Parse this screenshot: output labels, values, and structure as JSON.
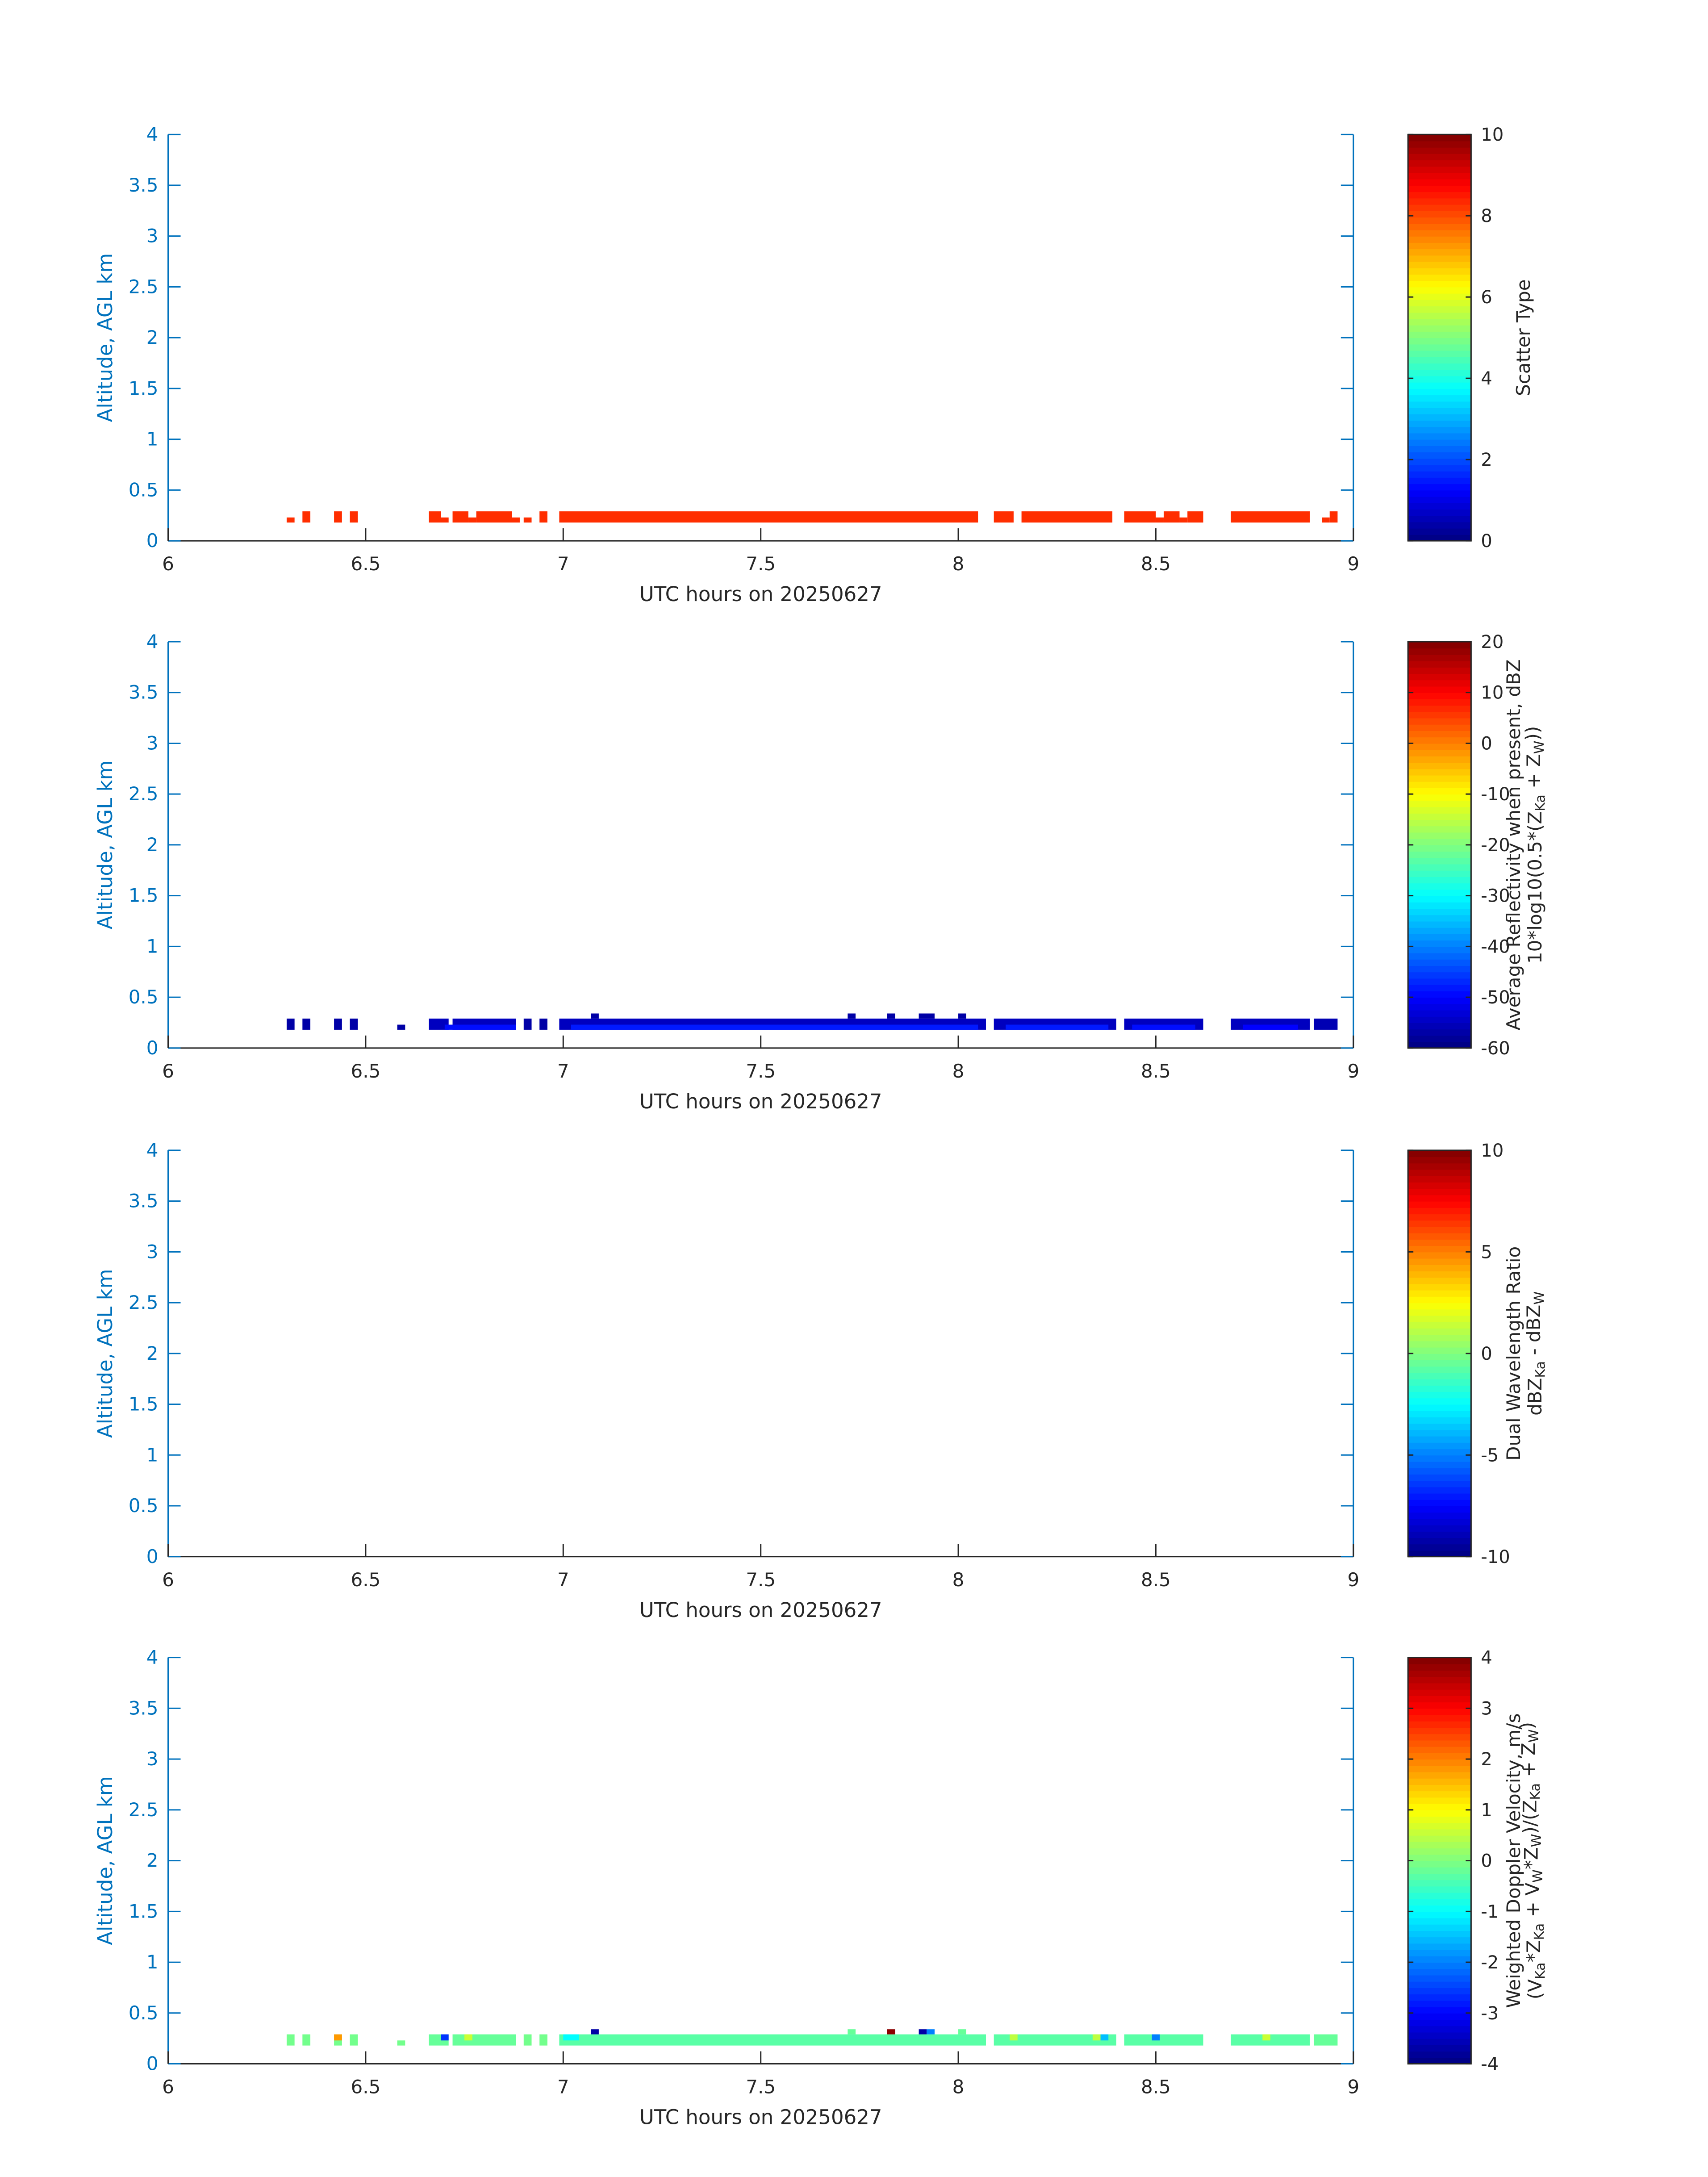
{
  "chart_data": [
    {
      "type": "heatmap",
      "xlabel": "UTC hours on 20250627",
      "ylabel": "Altitude, AGL km",
      "xlim": [
        6,
        9
      ],
      "ylim": [
        0,
        4
      ],
      "xticks": [
        "6",
        "6.5",
        "7",
        "7.5",
        "8",
        "8.5",
        "9"
      ],
      "yticks": [
        "0",
        "0.5",
        "1",
        "1.5",
        "2",
        "2.5",
        "3",
        "3.5",
        "4"
      ],
      "colorbar": {
        "label_lines": [
          "Scatter Type"
        ],
        "clim": [
          0,
          10
        ],
        "ticks": [
          "0",
          "2",
          "4",
          "6",
          "8",
          "10"
        ]
      },
      "data": [
        {
          "x0": 6.3,
          "x1": 6.32,
          "y0": 0.18,
          "y1": 0.23,
          "v": 8.3
        },
        {
          "x0": 6.34,
          "x1": 6.36,
          "y0": 0.18,
          "y1": 0.29,
          "v": 8.3
        },
        {
          "x0": 6.42,
          "x1": 6.44,
          "y0": 0.18,
          "y1": 0.29,
          "v": 8.3
        },
        {
          "x0": 6.46,
          "x1": 6.48,
          "y0": 0.18,
          "y1": 0.29,
          "v": 8.3
        },
        {
          "x0": 6.66,
          "x1": 6.69,
          "y0": 0.18,
          "y1": 0.29,
          "v": 8.3
        },
        {
          "x0": 6.69,
          "x1": 6.71,
          "y0": 0.18,
          "y1": 0.23,
          "v": 8.3
        },
        {
          "x0": 6.72,
          "x1": 6.76,
          "y0": 0.18,
          "y1": 0.29,
          "v": 8.3
        },
        {
          "x0": 6.76,
          "x1": 6.78,
          "y0": 0.18,
          "y1": 0.23,
          "v": 8.3
        },
        {
          "x0": 6.78,
          "x1": 6.87,
          "y0": 0.18,
          "y1": 0.29,
          "v": 8.3
        },
        {
          "x0": 6.87,
          "x1": 6.89,
          "y0": 0.18,
          "y1": 0.23,
          "v": 8.3
        },
        {
          "x0": 6.9,
          "x1": 6.92,
          "y0": 0.18,
          "y1": 0.23,
          "v": 8.3
        },
        {
          "x0": 6.94,
          "x1": 6.96,
          "y0": 0.18,
          "y1": 0.29,
          "v": 8.3
        },
        {
          "x0": 6.99,
          "x1": 8.05,
          "y0": 0.18,
          "y1": 0.29,
          "v": 8.3
        },
        {
          "x0": 8.09,
          "x1": 8.14,
          "y0": 0.18,
          "y1": 0.29,
          "v": 8.3
        },
        {
          "x0": 8.16,
          "x1": 8.39,
          "y0": 0.18,
          "y1": 0.29,
          "v": 8.3
        },
        {
          "x0": 8.42,
          "x1": 8.5,
          "y0": 0.18,
          "y1": 0.29,
          "v": 8.3
        },
        {
          "x0": 8.5,
          "x1": 8.52,
          "y0": 0.18,
          "y1": 0.23,
          "v": 8.3
        },
        {
          "x0": 8.52,
          "x1": 8.56,
          "y0": 0.18,
          "y1": 0.29,
          "v": 8.3
        },
        {
          "x0": 8.56,
          "x1": 8.58,
          "y0": 0.18,
          "y1": 0.23,
          "v": 8.3
        },
        {
          "x0": 8.58,
          "x1": 8.62,
          "y0": 0.18,
          "y1": 0.29,
          "v": 8.3
        },
        {
          "x0": 8.69,
          "x1": 8.89,
          "y0": 0.18,
          "y1": 0.29,
          "v": 8.3
        },
        {
          "x0": 8.92,
          "x1": 8.94,
          "y0": 0.18,
          "y1": 0.23,
          "v": 8.3
        },
        {
          "x0": 8.94,
          "x1": 8.96,
          "y0": 0.18,
          "y1": 0.29,
          "v": 8.3
        }
      ]
    },
    {
      "type": "heatmap",
      "xlabel": "UTC hours on 20250627",
      "ylabel": "Altitude, AGL km",
      "xlim": [
        6,
        9
      ],
      "ylim": [
        0,
        4
      ],
      "xticks": [
        "6",
        "6.5",
        "7",
        "7.5",
        "8",
        "8.5",
        "9"
      ],
      "yticks": [
        "0",
        "0.5",
        "1",
        "1.5",
        "2",
        "2.5",
        "3",
        "3.5",
        "4"
      ],
      "colorbar": {
        "label_lines": [
          "Average Reflectivity when present, dBZ",
          "10*log10(0.5*(Z|Ka| + Z|W|))"
        ],
        "clim": [
          -60,
          20
        ],
        "ticks": [
          "-60",
          "-50",
          "-40",
          "-30",
          "-20",
          "-10",
          "0",
          "10",
          "20"
        ]
      },
      "data": [
        {
          "x0": 6.3,
          "x1": 6.32,
          "y0": 0.18,
          "y1": 0.29,
          "v": -57
        },
        {
          "x0": 6.34,
          "x1": 6.36,
          "y0": 0.18,
          "y1": 0.29,
          "v": -57
        },
        {
          "x0": 6.42,
          "x1": 6.44,
          "y0": 0.18,
          "y1": 0.29,
          "v": -57
        },
        {
          "x0": 6.46,
          "x1": 6.48,
          "y0": 0.18,
          "y1": 0.29,
          "v": -57
        },
        {
          "x0": 6.58,
          "x1": 6.6,
          "y0": 0.18,
          "y1": 0.23,
          "v": -57
        },
        {
          "x0": 6.66,
          "x1": 6.71,
          "y0": 0.18,
          "y1": 0.29,
          "v": -55
        },
        {
          "x0": 6.72,
          "x1": 6.88,
          "y0": 0.18,
          "y1": 0.29,
          "v": -55
        },
        {
          "x0": 6.9,
          "x1": 6.92,
          "y0": 0.18,
          "y1": 0.29,
          "v": -57
        },
        {
          "x0": 6.94,
          "x1": 6.96,
          "y0": 0.18,
          "y1": 0.29,
          "v": -57
        },
        {
          "x0": 6.99,
          "x1": 8.07,
          "y0": 0.18,
          "y1": 0.29,
          "v": -55
        },
        {
          "x0": 8.09,
          "x1": 8.4,
          "y0": 0.18,
          "y1": 0.29,
          "v": -55
        },
        {
          "x0": 8.42,
          "x1": 8.62,
          "y0": 0.18,
          "y1": 0.29,
          "v": -55
        },
        {
          "x0": 8.69,
          "x1": 8.89,
          "y0": 0.18,
          "y1": 0.29,
          "v": -55
        },
        {
          "x0": 8.9,
          "x1": 8.96,
          "y0": 0.18,
          "y1": 0.29,
          "v": -56
        },
        {
          "x0": 6.7,
          "x1": 6.88,
          "y0": 0.18,
          "y1": 0.23,
          "v": -49
        },
        {
          "x0": 7.02,
          "x1": 8.05,
          "y0": 0.18,
          "y1": 0.23,
          "v": -48
        },
        {
          "x0": 8.12,
          "x1": 8.38,
          "y0": 0.18,
          "y1": 0.23,
          "v": -48
        },
        {
          "x0": 8.44,
          "x1": 8.6,
          "y0": 0.18,
          "y1": 0.23,
          "v": -49
        },
        {
          "x0": 8.72,
          "x1": 8.86,
          "y0": 0.18,
          "y1": 0.23,
          "v": -50
        },
        {
          "x0": 7.07,
          "x1": 7.09,
          "y0": 0.29,
          "y1": 0.34,
          "v": -57
        },
        {
          "x0": 7.72,
          "x1": 7.74,
          "y0": 0.29,
          "y1": 0.34,
          "v": -57
        },
        {
          "x0": 7.82,
          "x1": 7.84,
          "y0": 0.29,
          "y1": 0.34,
          "v": -57
        },
        {
          "x0": 7.9,
          "x1": 7.94,
          "y0": 0.29,
          "y1": 0.34,
          "v": -57
        },
        {
          "x0": 8.0,
          "x1": 8.02,
          "y0": 0.29,
          "y1": 0.34,
          "v": -57
        }
      ]
    },
    {
      "type": "heatmap",
      "xlabel": "UTC hours on 20250627",
      "ylabel": "Altitude, AGL km",
      "xlim": [
        6,
        9
      ],
      "ylim": [
        0,
        4
      ],
      "xticks": [
        "6",
        "6.5",
        "7",
        "7.5",
        "8",
        "8.5",
        "9"
      ],
      "yticks": [
        "0",
        "0.5",
        "1",
        "1.5",
        "2",
        "2.5",
        "3",
        "3.5",
        "4"
      ],
      "colorbar": {
        "label_lines": [
          "Dual Wavelength Ratio",
          "dBZ|Ka| - dBZ|W|"
        ],
        "clim": [
          -10,
          10
        ],
        "ticks": [
          "-10",
          "-5",
          "0",
          "5",
          "10"
        ]
      },
      "data": []
    },
    {
      "type": "heatmap",
      "xlabel": "UTC hours on 20250627",
      "ylabel": "Altitude, AGL km",
      "xlim": [
        6,
        9
      ],
      "ylim": [
        0,
        4
      ],
      "xticks": [
        "6",
        "6.5",
        "7",
        "7.5",
        "8",
        "8.5",
        "9"
      ],
      "yticks": [
        "0",
        "0.5",
        "1",
        "1.5",
        "2",
        "2.5",
        "3",
        "3.5",
        "4"
      ],
      "colorbar": {
        "label_lines": [
          "Weighted Doppler Velocity, m/s",
          "(V|Ka|*Z|Ka| + V|W|*Z|W|)/(Z|Ka| + Z|W|)"
        ],
        "clim": [
          -4,
          4
        ],
        "ticks": [
          "-4",
          "-3",
          "-2",
          "-1",
          "0",
          "1",
          "2",
          "3",
          "4"
        ]
      },
      "data": [
        {
          "x0": 6.3,
          "x1": 6.32,
          "y0": 0.18,
          "y1": 0.29,
          "v": -0.1
        },
        {
          "x0": 6.34,
          "x1": 6.36,
          "y0": 0.18,
          "y1": 0.29,
          "v": -0.1
        },
        {
          "x0": 6.42,
          "x1": 6.44,
          "y0": 0.18,
          "y1": 0.29,
          "v": -0.1
        },
        {
          "x0": 6.42,
          "x1": 6.44,
          "y0": 0.23,
          "y1": 0.29,
          "v": 1.8
        },
        {
          "x0": 6.46,
          "x1": 6.48,
          "y0": 0.18,
          "y1": 0.29,
          "v": -0.1
        },
        {
          "x0": 6.58,
          "x1": 6.6,
          "y0": 0.18,
          "y1": 0.23,
          "v": -0.1
        },
        {
          "x0": 6.66,
          "x1": 6.71,
          "y0": 0.18,
          "y1": 0.29,
          "v": -0.2
        },
        {
          "x0": 6.69,
          "x1": 6.71,
          "y0": 0.23,
          "y1": 0.29,
          "v": -2.6
        },
        {
          "x0": 6.72,
          "x1": 6.88,
          "y0": 0.18,
          "y1": 0.29,
          "v": -0.2
        },
        {
          "x0": 6.75,
          "x1": 6.77,
          "y0": 0.23,
          "y1": 0.29,
          "v": 0.6
        },
        {
          "x0": 6.9,
          "x1": 6.92,
          "y0": 0.18,
          "y1": 0.29,
          "v": -0.1
        },
        {
          "x0": 6.94,
          "x1": 6.96,
          "y0": 0.18,
          "y1": 0.29,
          "v": -0.1
        },
        {
          "x0": 6.99,
          "x1": 8.07,
          "y0": 0.18,
          "y1": 0.29,
          "v": -0.3
        },
        {
          "x0": 7.0,
          "x1": 7.04,
          "y0": 0.23,
          "y1": 0.29,
          "v": -1.0
        },
        {
          "x0": 8.09,
          "x1": 8.4,
          "y0": 0.18,
          "y1": 0.29,
          "v": -0.3
        },
        {
          "x0": 8.13,
          "x1": 8.15,
          "y0": 0.23,
          "y1": 0.29,
          "v": 0.5
        },
        {
          "x0": 8.34,
          "x1": 8.36,
          "y0": 0.23,
          "y1": 0.29,
          "v": 0.5
        },
        {
          "x0": 8.36,
          "x1": 8.38,
          "y0": 0.23,
          "y1": 0.29,
          "v": -1.5
        },
        {
          "x0": 8.42,
          "x1": 8.62,
          "y0": 0.18,
          "y1": 0.29,
          "v": -0.3
        },
        {
          "x0": 8.49,
          "x1": 8.51,
          "y0": 0.23,
          "y1": 0.29,
          "v": -2.0
        },
        {
          "x0": 8.69,
          "x1": 8.89,
          "y0": 0.18,
          "y1": 0.29,
          "v": -0.3
        },
        {
          "x0": 8.77,
          "x1": 8.79,
          "y0": 0.23,
          "y1": 0.29,
          "v": 0.6
        },
        {
          "x0": 8.9,
          "x1": 8.96,
          "y0": 0.18,
          "y1": 0.29,
          "v": -0.2
        },
        {
          "x0": 7.07,
          "x1": 7.09,
          "y0": 0.29,
          "y1": 0.34,
          "v": -3.7
        },
        {
          "x0": 7.72,
          "x1": 7.74,
          "y0": 0.29,
          "y1": 0.34,
          "v": -0.2
        },
        {
          "x0": 7.82,
          "x1": 7.84,
          "y0": 0.29,
          "y1": 0.34,
          "v": 3.9
        },
        {
          "x0": 7.9,
          "x1": 7.92,
          "y0": 0.29,
          "y1": 0.34,
          "v": -3.7
        },
        {
          "x0": 7.92,
          "x1": 7.94,
          "y0": 0.29,
          "y1": 0.34,
          "v": -2.0
        },
        {
          "x0": 8.0,
          "x1": 8.02,
          "y0": 0.29,
          "y1": 0.34,
          "v": -0.2
        }
      ]
    }
  ]
}
